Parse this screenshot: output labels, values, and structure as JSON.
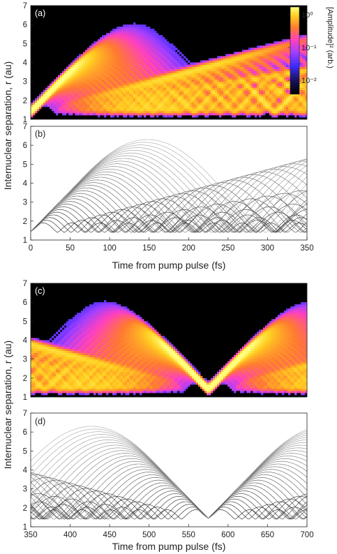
{
  "figure": {
    "ylabel_top": "Internuclear separation, r (au)",
    "ylabel_bottom": "Internuclear separation, r (au)",
    "xlabel_top": "Time from pump pulse (fs)",
    "xlabel_bottom": "Time from pump pulse (fs)",
    "colorbar": {
      "label": "[Amplitude]² (arb.)",
      "ticks": [
        "10⁰",
        "10⁻¹",
        "10⁻²"
      ],
      "colors": [
        "#000000",
        "#1a1470",
        "#3a2cff",
        "#a040ff",
        "#ff40c0",
        "#ff7a30",
        "#ffd020",
        "#ffff80"
      ]
    }
  },
  "chart_data": [
    {
      "panel": "(a)",
      "type": "heatmap",
      "xlim": [
        0,
        350
      ],
      "ylim": [
        1,
        7
      ],
      "yticks": [
        1,
        2,
        3,
        4,
        5,
        6,
        7
      ],
      "colorscale": "log",
      "vlim": [
        0.002,
        2
      ]
    },
    {
      "panel": "(b)",
      "type": "line",
      "xlim": [
        0,
        350
      ],
      "ylim": [
        1,
        7
      ],
      "xticks": [
        0,
        50,
        100,
        150,
        200,
        250,
        300,
        350
      ],
      "yticks": [
        1,
        2,
        3,
        4,
        5,
        6,
        7
      ],
      "r_inner": 1.4,
      "r_outer_max": 6.3,
      "t_launch": 0
    },
    {
      "panel": "(c)",
      "type": "heatmap",
      "xlim": [
        350,
        700
      ],
      "ylim": [
        1,
        7
      ],
      "yticks": [
        1,
        2,
        3,
        4,
        5,
        6,
        7
      ],
      "colorscale": "log",
      "vlim": [
        0.002,
        2
      ]
    },
    {
      "panel": "(d)",
      "type": "line",
      "xlim": [
        350,
        700
      ],
      "ylim": [
        1,
        7
      ],
      "xticks": [
        350,
        400,
        450,
        500,
        550,
        600,
        650,
        700
      ],
      "yticks": [
        1,
        2,
        3,
        4,
        5,
        6,
        7
      ],
      "r_inner": 1.4,
      "r_outer_max": 6.3,
      "refocus_time": 575
    }
  ]
}
